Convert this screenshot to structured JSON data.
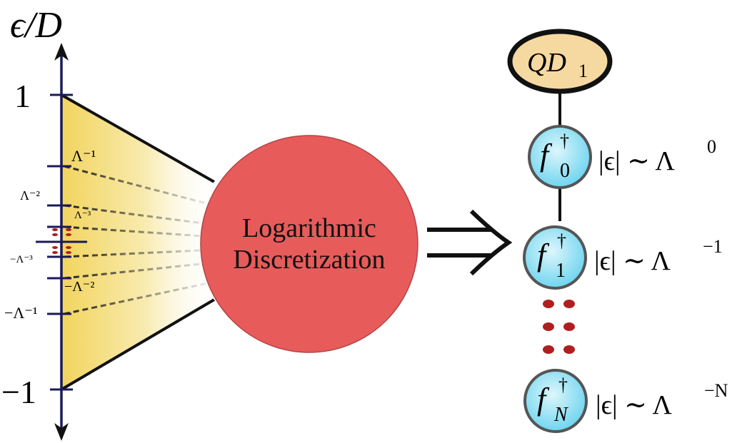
{
  "axis": {
    "label": "ϵ/D",
    "top_value": "1",
    "bottom_value": "−1",
    "ticks_pos": [
      "Λ⁻¹",
      "Λ⁻²",
      "Λ⁻³"
    ],
    "ticks_neg": [
      "−Λ⁻³",
      "−Λ⁻²",
      "−Λ⁻¹"
    ]
  },
  "process": {
    "line1": "Logarithmic",
    "line2": "Discretization",
    "circle_color": "#e85b5b"
  },
  "chain": {
    "impurity": {
      "base": "QD",
      "sub": "1",
      "fill": "#f6d9a0"
    },
    "sites": [
      {
        "base": "f",
        "sup": "†",
        "sub": "0",
        "energy": "|ϵ| ∼ Λ",
        "exp": "0"
      },
      {
        "base": "f",
        "sup": "†",
        "sub": "1",
        "energy": "|ϵ| ∼ Λ",
        "exp": "−1"
      },
      {
        "base": "f",
        "sup": "†",
        "sub": "N",
        "energy": "|ϵ| ∼ Λ",
        "exp": "−N"
      }
    ],
    "site_fill": "#7fdcf2",
    "dot_color": "#b01f1f"
  }
}
